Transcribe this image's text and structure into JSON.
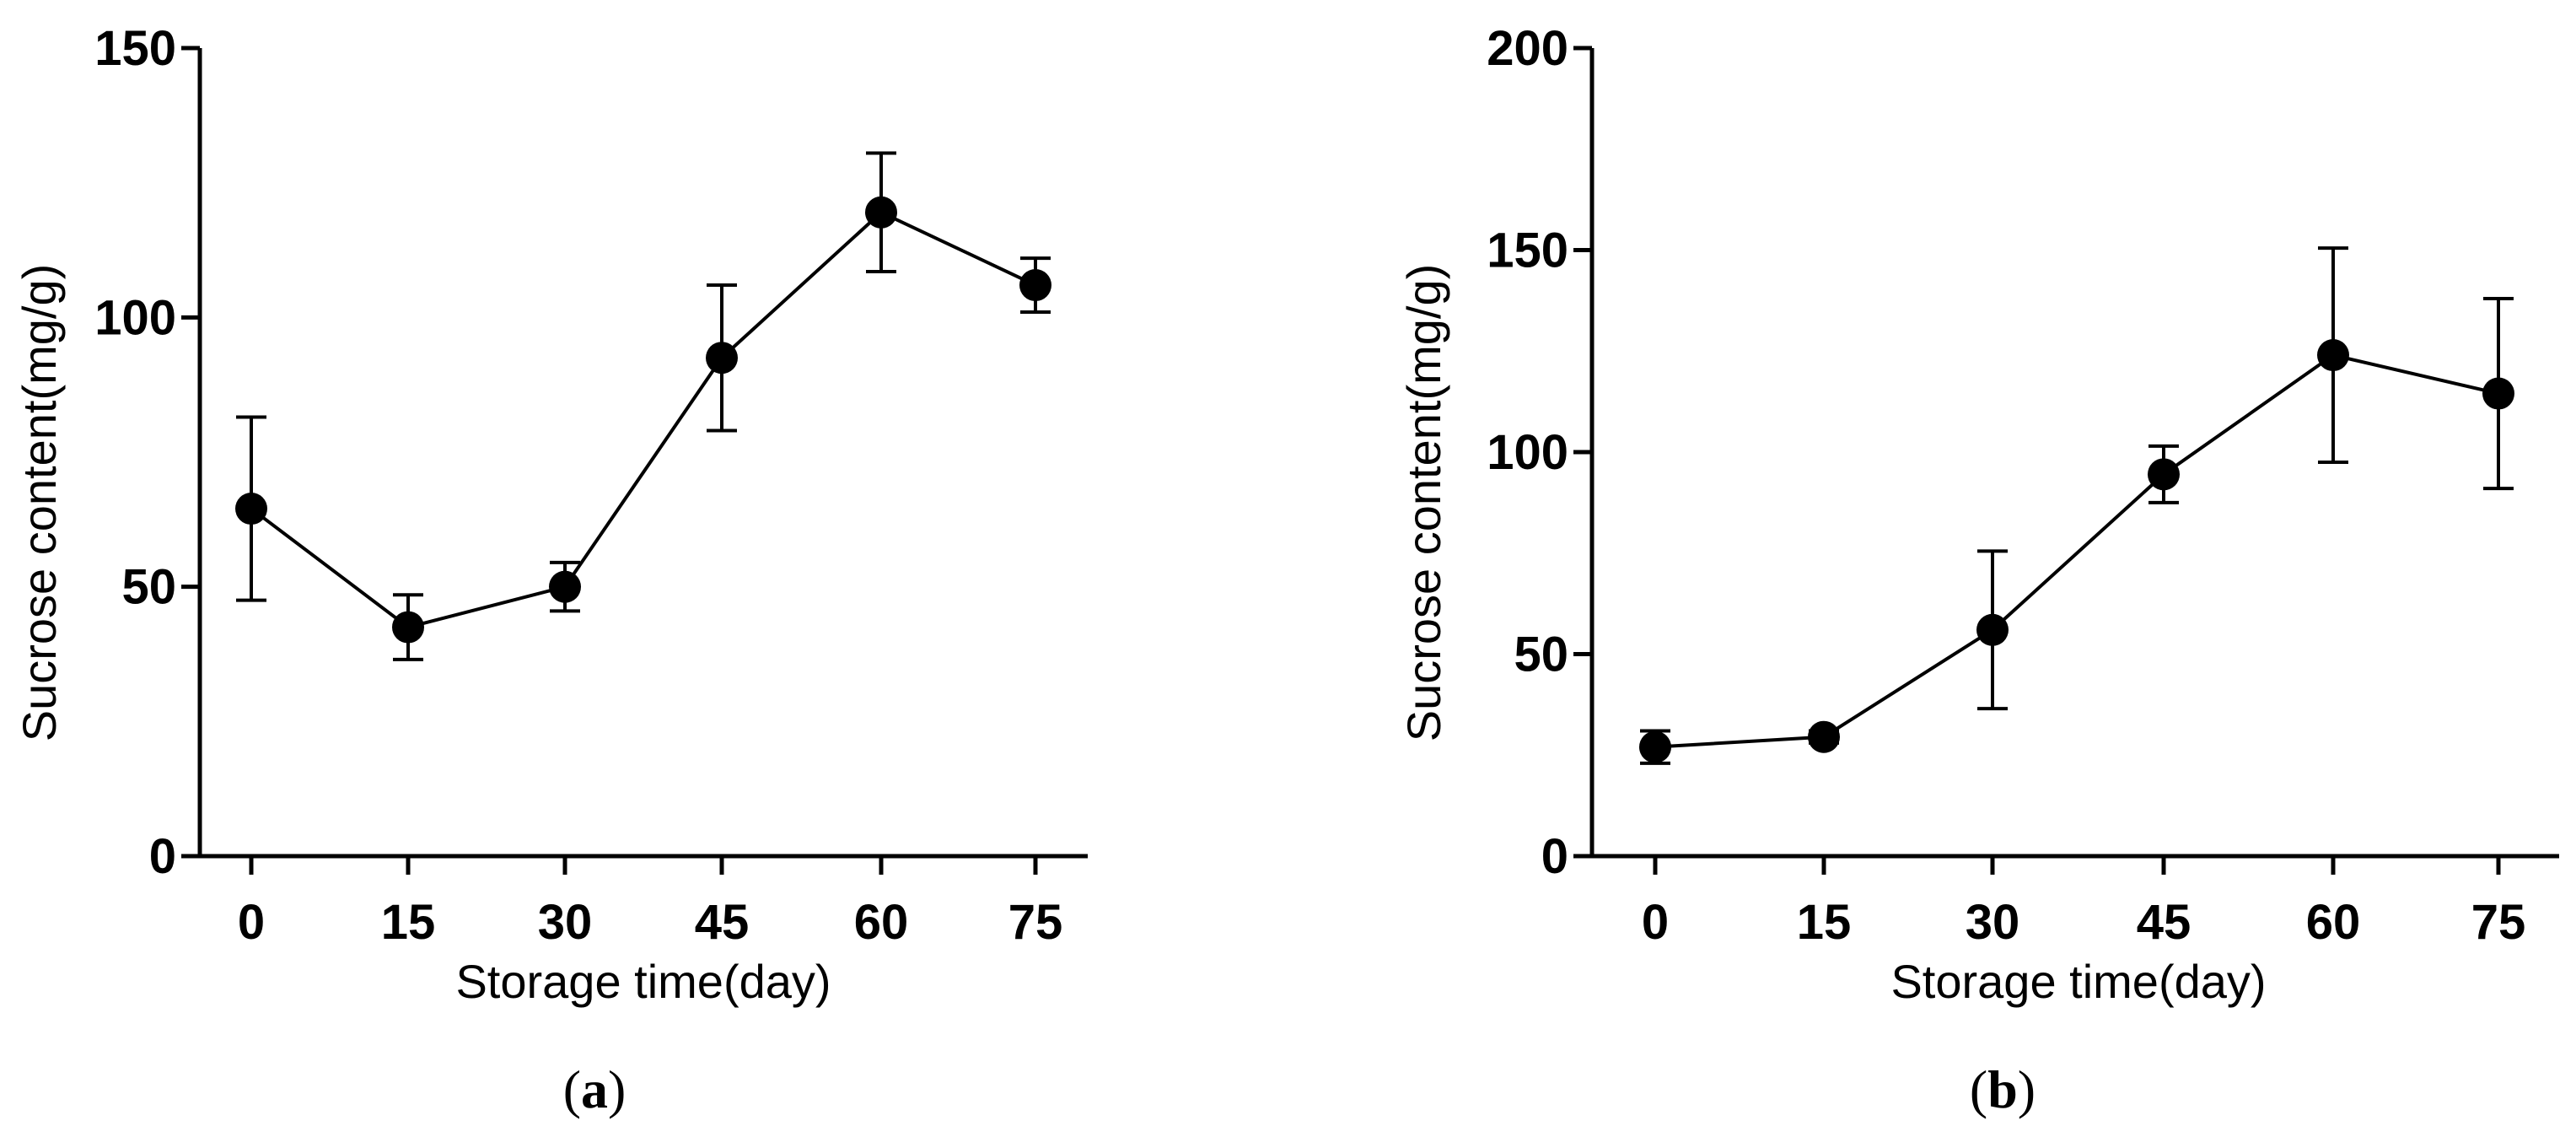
{
  "chart_data": [
    {
      "type": "line",
      "panel": "a",
      "caption": {
        "open": "(",
        "letter": "a",
        "close": ")"
      },
      "xlabel": "Storage time(day)",
      "ylabel": "Sucrose content(mg/g)",
      "categories": [
        "0",
        "15",
        "30",
        "45",
        "60",
        "75"
      ],
      "ylim": [
        0,
        150
      ],
      "yticks": [
        0,
        50,
        100,
        150
      ],
      "series": [
        {
          "name": "Sucrose content",
          "values": [
            64.5,
            42.5,
            50,
            92.5,
            119.5,
            106
          ],
          "errors": [
            17,
            6,
            4.5,
            13.5,
            11,
            5
          ]
        }
      ]
    },
    {
      "type": "line",
      "panel": "b",
      "caption": {
        "open": "(",
        "letter": "b",
        "close": ")"
      },
      "xlabel": "Storage time(day)",
      "ylabel": "Sucrose content(mg/g)",
      "categories": [
        "0",
        "15",
        "30",
        "45",
        "60",
        "75"
      ],
      "ylim": [
        0,
        200
      ],
      "yticks": [
        0,
        50,
        100,
        150,
        200
      ],
      "series": [
        {
          "name": "Sucrose content",
          "values": [
            27,
            29.5,
            56,
            94.5,
            124,
            114.5
          ],
          "errors": [
            4,
            1.5,
            19.5,
            7,
            26.5,
            23.5
          ]
        }
      ]
    }
  ]
}
